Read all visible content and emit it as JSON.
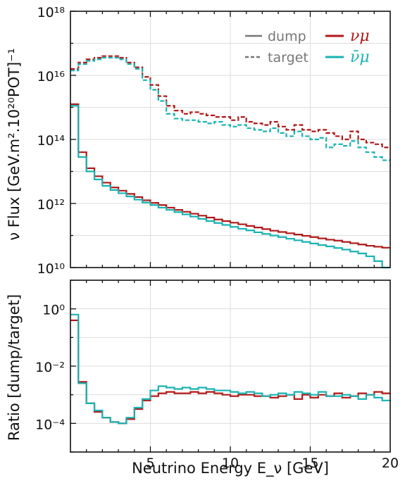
{
  "chart_data": [
    {
      "type": "line",
      "scale_y": "log",
      "step": true,
      "xlim": [
        0,
        20
      ],
      "ylim_exp": [
        10,
        18
      ],
      "ylabel": "ν Flux [GeV.m².10²⁰POT]⁻¹",
      "x_ticks": [
        5,
        10,
        15,
        20
      ],
      "y_ticks": [
        "10¹⁰",
        "10¹²",
        "10¹⁴",
        "10¹⁶",
        "10¹⁸"
      ],
      "grid": true,
      "legend_placement": "top-right",
      "legend": {
        "styles": [
          {
            "label": "dump",
            "line": "solid"
          },
          {
            "label": "target",
            "line": "dashed"
          }
        ],
        "particles": [
          {
            "label": "νμ",
            "color": "#b01818"
          },
          {
            "label": "ν̄μ",
            "color": "#1ab2b2"
          }
        ]
      },
      "bin_width": 0.5,
      "series": [
        {
          "name": "νμ target",
          "color": "#b01818",
          "line": "dashed",
          "log10_values": [
            16.2,
            16.4,
            16.5,
            16.55,
            16.6,
            16.6,
            16.55,
            16.4,
            16.25,
            15.95,
            15.7,
            15.35,
            15.05,
            14.9,
            14.8,
            14.85,
            14.8,
            14.75,
            14.7,
            14.7,
            14.6,
            14.7,
            14.55,
            14.5,
            14.45,
            14.55,
            14.4,
            14.3,
            14.45,
            14.3,
            14.25,
            14.3,
            14.2,
            14.1,
            14.0,
            14.25,
            14.0,
            13.9,
            13.85,
            13.75
          ]
        },
        {
          "name": "ν̄μ target",
          "color": "#1ab2b2",
          "line": "dashed",
          "log10_values": [
            16.15,
            16.35,
            16.45,
            16.5,
            16.55,
            16.55,
            16.5,
            16.35,
            16.2,
            15.85,
            15.55,
            15.2,
            14.8,
            14.65,
            14.6,
            14.6,
            14.55,
            14.5,
            14.55,
            14.45,
            14.4,
            14.45,
            14.35,
            14.3,
            14.25,
            14.35,
            14.2,
            14.1,
            14.25,
            14.1,
            14.0,
            14.05,
            13.75,
            13.85,
            13.8,
            13.95,
            13.75,
            13.6,
            13.45,
            13.35
          ]
        },
        {
          "name": "νμ dump",
          "color": "#b01818",
          "line": "solid",
          "log10_values": [
            15.1,
            13.6,
            13.1,
            12.85,
            12.65,
            12.5,
            12.4,
            12.3,
            12.2,
            12.1,
            12.02,
            11.95,
            11.87,
            11.8,
            11.74,
            11.68,
            11.62,
            11.56,
            11.5,
            11.45,
            11.4,
            11.35,
            11.3,
            11.25,
            11.2,
            11.15,
            11.11,
            11.07,
            11.03,
            10.99,
            10.95,
            10.91,
            10.87,
            10.84,
            10.8,
            10.76,
            10.72,
            10.68,
            10.65,
            10.62
          ]
        },
        {
          "name": "ν̄μ dump",
          "color": "#1ab2b2",
          "line": "solid",
          "log10_values": [
            15.05,
            13.45,
            13.0,
            12.75,
            12.55,
            12.42,
            12.32,
            12.22,
            12.12,
            12.03,
            11.95,
            11.87,
            11.8,
            11.73,
            11.66,
            11.59,
            11.52,
            11.45,
            11.39,
            11.33,
            11.27,
            11.21,
            11.16,
            11.1,
            11.05,
            11.0,
            10.95,
            10.9,
            10.85,
            10.8,
            10.75,
            10.7,
            10.66,
            10.61,
            10.56,
            10.5,
            10.44,
            10.35,
            10.2,
            9.95
          ]
        }
      ]
    },
    {
      "type": "line",
      "scale_y": "log",
      "step": true,
      "xlim": [
        0,
        20
      ],
      "ylim_exp": [
        -5,
        1
      ],
      "xlabel": "Neutrino Energy E_ν [GeV]",
      "ylabel": "Ratio [dump/target]",
      "x_ticks": [
        "5",
        "10",
        "15",
        "20"
      ],
      "y_ticks": [
        "10⁰",
        "10⁻²",
        "10⁻⁴"
      ],
      "grid": true,
      "bin_width": 0.5,
      "series": [
        {
          "name": "νμ",
          "color": "#b01818",
          "line": "solid",
          "log10_values": [
            -0.4,
            -2.55,
            -3.3,
            -3.6,
            -3.8,
            -3.95,
            -4.0,
            -3.85,
            -3.5,
            -3.2,
            -3.05,
            -2.95,
            -2.9,
            -2.95,
            -2.95,
            -2.9,
            -2.95,
            -2.9,
            -2.95,
            -3.0,
            -3.05,
            -3.0,
            -3.0,
            -3.05,
            -3.05,
            -3.1,
            -3.05,
            -3.0,
            -3.15,
            -3.0,
            -3.1,
            -3.0,
            -3.05,
            -2.95,
            -3.1,
            -3.05,
            -2.95,
            -3.0,
            -2.9,
            -2.95
          ]
        },
        {
          "name": "ν̄μ",
          "color": "#1ab2b2",
          "line": "solid",
          "log10_values": [
            -0.2,
            -2.6,
            -3.3,
            -3.55,
            -3.8,
            -3.95,
            -4.0,
            -3.8,
            -3.45,
            -3.15,
            -2.85,
            -2.7,
            -2.75,
            -2.8,
            -2.75,
            -2.8,
            -2.75,
            -2.8,
            -2.85,
            -2.85,
            -2.9,
            -2.95,
            -2.9,
            -2.95,
            -3.05,
            -3.0,
            -2.95,
            -3.0,
            -2.9,
            -2.95,
            -3.0,
            -2.9,
            -3.05,
            -3.05,
            -3.0,
            -3.05,
            -3.15,
            -3.0,
            -3.1,
            -3.2
          ]
        }
      ]
    }
  ]
}
